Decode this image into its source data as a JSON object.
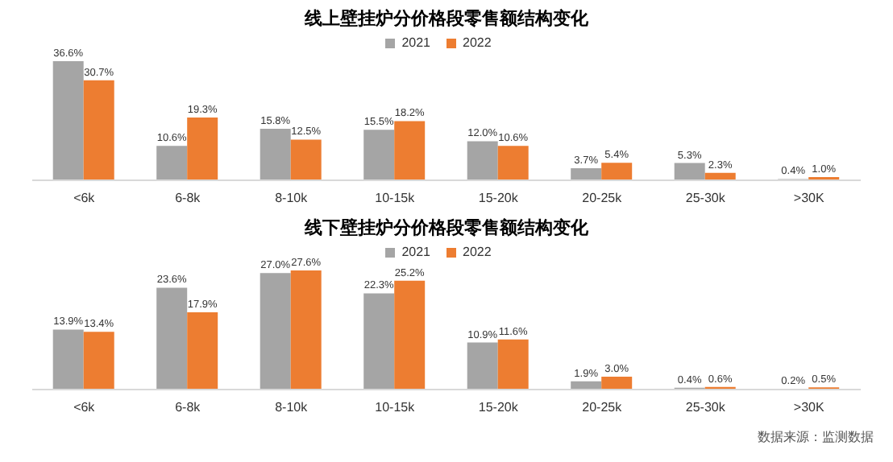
{
  "chart_data": [
    {
      "type": "bar",
      "title": "线上壁挂炉分价格段零售额结构变化",
      "categories": [
        "<6k",
        "6-8k",
        "8-10k",
        "10-15k",
        "15-20k",
        "20-25k",
        "25-30k",
        ">30K"
      ],
      "series": [
        {
          "name": "2021",
          "color": "#a5a5a5",
          "values": [
            36.6,
            10.6,
            15.8,
            15.5,
            12.0,
            3.7,
            5.3,
            0.4
          ],
          "value_labels": [
            "36.6%",
            "10.6%",
            "15.8%",
            "15.5%",
            "12.0%",
            "3.7%",
            "5.3%",
            "0.4%"
          ]
        },
        {
          "name": "2022",
          "color": "#ed7d31",
          "values": [
            30.7,
            19.3,
            12.5,
            18.2,
            10.6,
            5.4,
            2.3,
            1.0
          ],
          "value_labels": [
            "30.7%",
            "19.3%",
            "12.5%",
            "18.2%",
            "10.6%",
            "5.4%",
            "2.3%",
            "1.0%"
          ]
        }
      ],
      "legend": "top",
      "grid": false
    },
    {
      "type": "bar",
      "title": "线下壁挂炉分价格段零售额结构变化",
      "categories": [
        "<6k",
        "6-8k",
        "8-10k",
        "10-15k",
        "15-20k",
        "20-25k",
        "25-30k",
        ">30K"
      ],
      "series": [
        {
          "name": "2021",
          "color": "#a5a5a5",
          "values": [
            13.9,
            23.6,
            27.0,
            22.3,
            10.9,
            1.9,
            0.4,
            0.2
          ],
          "value_labels": [
            "13.9%",
            "23.6%",
            "27.0%",
            "22.3%",
            "10.9%",
            "1.9%",
            "0.4%",
            "0.2%"
          ]
        },
        {
          "name": "2022",
          "color": "#ed7d31",
          "values": [
            13.4,
            17.9,
            27.6,
            25.2,
            11.6,
            3.0,
            0.6,
            0.5
          ],
          "value_labels": [
            "13.4%",
            "17.9%",
            "27.6%",
            "25.2%",
            "11.6%",
            "3.0%",
            "0.6%",
            "0.5%"
          ]
        }
      ],
      "legend": "top",
      "grid": false,
      "annotations": [
        "数据来源：监测数据"
      ]
    }
  ]
}
